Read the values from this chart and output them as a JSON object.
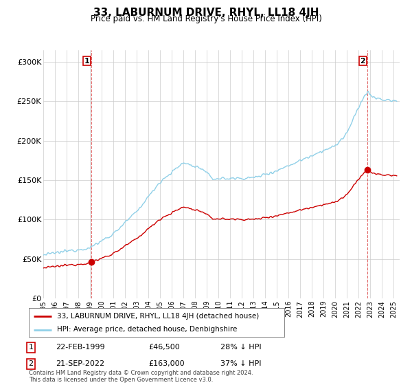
{
  "title": "33, LABURNUM DRIVE, RHYL, LL18 4JH",
  "subtitle": "Price paid vs. HM Land Registry's House Price Index (HPI)",
  "ylabel_ticks": [
    "£0",
    "£50K",
    "£100K",
    "£150K",
    "£200K",
    "£250K",
    "£300K"
  ],
  "ytick_values": [
    0,
    50000,
    100000,
    150000,
    200000,
    250000,
    300000
  ],
  "ylim": [
    0,
    315000
  ],
  "xlim_start": 1995.0,
  "xlim_end": 2025.5,
  "hpi_color": "#90D0E8",
  "price_color": "#CC0000",
  "sale1_date_num": 1999.13,
  "sale1_price": 46500,
  "sale2_date_num": 2022.72,
  "sale2_price": 163000,
  "legend_line1": "33, LABURNUM DRIVE, RHYL, LL18 4JH (detached house)",
  "legend_line2": "HPI: Average price, detached house, Denbighshire",
  "table_row1_num": "1",
  "table_row1_date": "22-FEB-1999",
  "table_row1_price": "£46,500",
  "table_row1_hpi": "28% ↓ HPI",
  "table_row2_num": "2",
  "table_row2_date": "21-SEP-2022",
  "table_row2_price": "£163,000",
  "table_row2_hpi": "37% ↓ HPI",
  "footer": "Contains HM Land Registry data © Crown copyright and database right 2024.\nThis data is licensed under the Open Government Licence v3.0.",
  "background_color": "#ffffff",
  "grid_color": "#cccccc"
}
